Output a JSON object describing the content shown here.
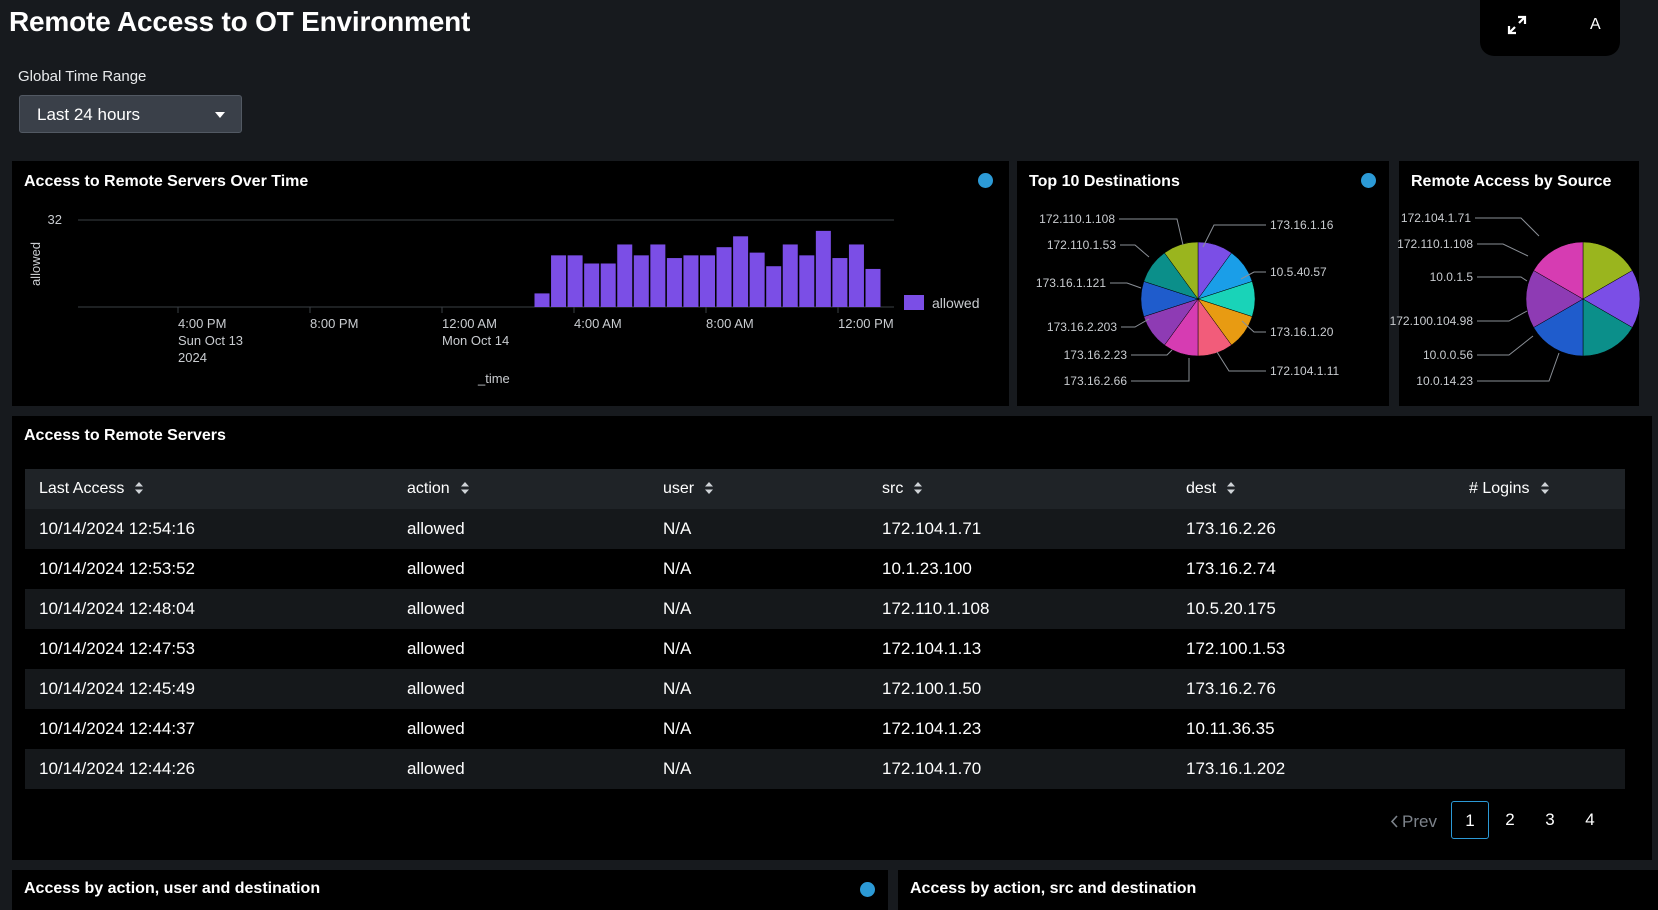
{
  "page": {
    "title": "Remote Access to OT Environment",
    "top_button_extra": "A"
  },
  "time_range": {
    "label": "Global Time Range",
    "value": "Last 24 hours"
  },
  "panels": {
    "over_time": {
      "title": "Access to Remote Servers Over Time"
    },
    "top_dest": {
      "title": "Top 10 Destinations"
    },
    "by_source": {
      "title": "Remote Access by Source"
    },
    "table_panel": {
      "title": "Access to Remote Servers"
    },
    "action_user": {
      "title": "Access by action, user and destination"
    },
    "action_src": {
      "title": "Access by action, src and destination"
    }
  },
  "colors": {
    "accent": "#2c9ad6",
    "bar": "#7b4ee6"
  },
  "chart_data": [
    {
      "type": "bar",
      "title": "Access to Remote Servers Over Time",
      "xlabel": "_time",
      "ylabel": "allowed",
      "ylim": [
        0,
        32
      ],
      "yticks": [
        "32"
      ],
      "xticks": [
        {
          "lines": [
            "4:00 PM",
            "Sun Oct 13",
            "2024"
          ]
        },
        {
          "lines": [
            "8:00 PM"
          ]
        },
        {
          "lines": [
            "12:00 AM",
            "Mon Oct 14"
          ]
        },
        {
          "lines": [
            "4:00 AM"
          ]
        },
        {
          "lines": [
            "8:00 AM"
          ]
        },
        {
          "lines": [
            "12:00 PM"
          ]
        }
      ],
      "legend": {
        "position": "right",
        "entries": [
          "allowed"
        ]
      },
      "series": [
        {
          "name": "allowed",
          "values": [
            5,
            19,
            19,
            16,
            16,
            23,
            19,
            23,
            18,
            19,
            19,
            22,
            26,
            20,
            15,
            23,
            19,
            28,
            18,
            23,
            14
          ]
        }
      ]
    },
    {
      "type": "pie",
      "title": "Top 10 Destinations",
      "slices": [
        {
          "label": "173.16.1.16",
          "value": 10,
          "color": "#7b4ee6"
        },
        {
          "label": "10.5.40.57",
          "value": 10,
          "color": "#1a9ee8"
        },
        {
          "label": "173.16.1.20",
          "value": 10,
          "color": "#19d3b8"
        },
        {
          "label": "172.104.1.11",
          "value": 10,
          "color": "#e89b12"
        },
        {
          "label": "173.16.2.66",
          "value": 10,
          "color": "#f25c7a"
        },
        {
          "label": "173.16.2.23",
          "value": 10,
          "color": "#d63cb2"
        },
        {
          "label": "173.16.2.203",
          "value": 10,
          "color": "#8e3bb4"
        },
        {
          "label": "173.16.1.121",
          "value": 10,
          "color": "#1f5ccc"
        },
        {
          "label": "172.110.1.53",
          "value": 10,
          "color": "#0b8f8a"
        },
        {
          "label": "172.110.1.108",
          "value": 10,
          "color": "#9ab51e"
        }
      ]
    },
    {
      "type": "pie",
      "title": "Remote Access by Source",
      "slices": [
        {
          "label": "172.104.1.71",
          "value": 10,
          "color": "#9ab51e"
        },
        {
          "label": "172.110.1.108",
          "value": 10,
          "color": "#7b4ee6"
        },
        {
          "label": "10.0.1.5",
          "value": 10,
          "color": "#0b8f8a"
        },
        {
          "label": "172.100.104.98",
          "value": 10,
          "color": "#1f5ccc"
        },
        {
          "label": "10.0.0.56",
          "value": 10,
          "color": "#8e3bb4"
        },
        {
          "label": "10.0.14.23",
          "value": 10,
          "color": "#d63cb2"
        }
      ]
    }
  ],
  "table": {
    "columns": [
      "Last Access",
      "action",
      "user",
      "src",
      "dest",
      "# Logins"
    ],
    "rows": [
      [
        "10/14/2024 12:54:16",
        "allowed",
        "N/A",
        "172.104.1.71",
        "173.16.2.26"
      ],
      [
        "10/14/2024 12:53:52",
        "allowed",
        "N/A",
        "10.1.23.100",
        "173.16.2.74"
      ],
      [
        "10/14/2024 12:48:04",
        "allowed",
        "N/A",
        "172.110.1.108",
        "10.5.20.175"
      ],
      [
        "10/14/2024 12:47:53",
        "allowed",
        "N/A",
        "172.104.1.13",
        "172.100.1.53"
      ],
      [
        "10/14/2024 12:45:49",
        "allowed",
        "N/A",
        "172.100.1.50",
        "173.16.2.76"
      ],
      [
        "10/14/2024 12:44:37",
        "allowed",
        "N/A",
        "172.104.1.23",
        "10.11.36.35"
      ],
      [
        "10/14/2024 12:44:26",
        "allowed",
        "N/A",
        "172.104.1.70",
        "173.16.1.202"
      ]
    ],
    "pagination": {
      "prev": "Prev",
      "pages": [
        "1",
        "2",
        "3",
        "4"
      ],
      "current": "1"
    }
  }
}
